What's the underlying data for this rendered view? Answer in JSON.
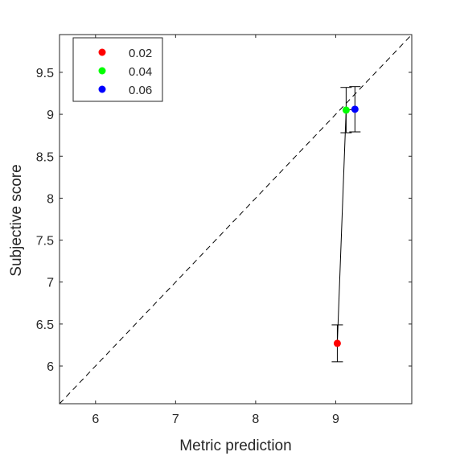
{
  "chart_data": {
    "type": "scatter",
    "xlabel": "Metric prediction",
    "ylabel": "Subjective score",
    "xlim": [
      5.55,
      9.95
    ],
    "ylim": [
      5.55,
      9.95
    ],
    "xticks": [
      6,
      7,
      8,
      9
    ],
    "yticks": [
      6,
      6.5,
      7,
      7.5,
      8,
      8.5,
      9,
      9.5
    ],
    "xtick_labels": [
      "6",
      "7",
      "8",
      "9"
    ],
    "ytick_labels": [
      "6",
      "6.5",
      "7",
      "7.5",
      "8",
      "8.5",
      "9",
      "9.5"
    ],
    "grid": false,
    "legend_position": "top-left",
    "reference_line": "y = x (dashed)",
    "series": [
      {
        "name": "0.02",
        "color": "#ff0000",
        "x": 9.02,
        "y": 6.27,
        "err_low": 6.05,
        "err_high": 6.49
      },
      {
        "name": "0.04",
        "color": "#00ff00",
        "x": 9.13,
        "y": 9.05,
        "err_low": 8.78,
        "err_high": 9.32
      },
      {
        "name": "0.06",
        "color": "#0000ff",
        "x": 9.24,
        "y": 9.06,
        "err_low": 8.79,
        "err_high": 9.33
      }
    ],
    "connecting_line": true
  }
}
